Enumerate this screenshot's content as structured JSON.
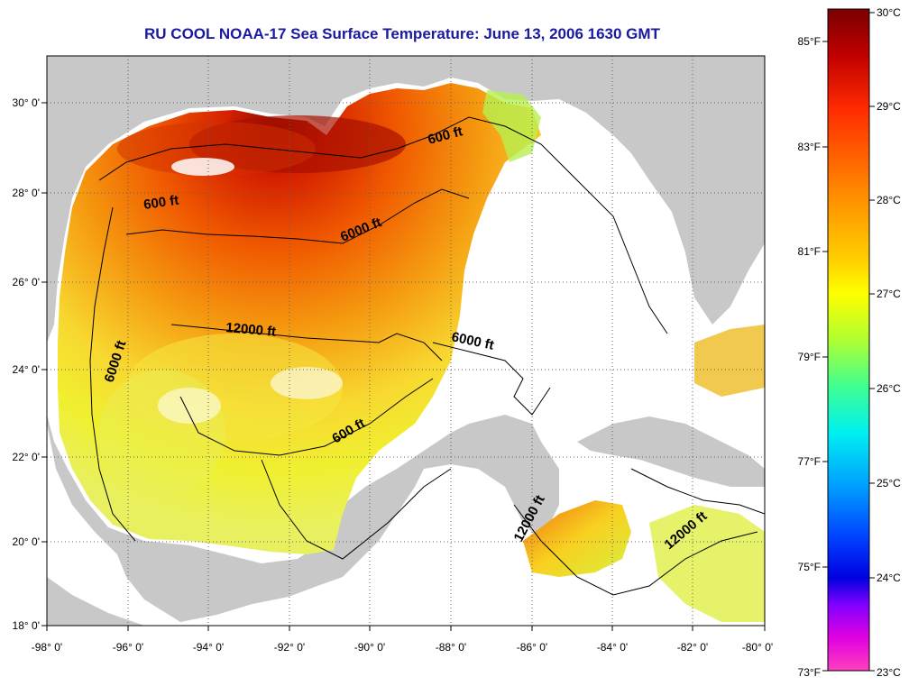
{
  "title": "RU COOL  NOAA-17  Sea Surface Temperature:  June 13, 2006 1630 GMT",
  "colors": {
    "land": "#c8c8c8",
    "nodata": "#ffffff",
    "frame": "#000000",
    "title": "#1a1aa0"
  },
  "lon_ticks": [
    "-98° 0'",
    "-96° 0'",
    "-94° 0'",
    "-92° 0'",
    "-90° 0'",
    "-88° 0'",
    "-86° 0'",
    "-84° 0'",
    "-82° 0'",
    "-80° 0'"
  ],
  "lat_ticks": [
    "30° 0'",
    "28° 0'",
    "26° 0'",
    "24° 0'",
    "22° 0'",
    "20° 0'",
    "18° 0'"
  ],
  "contour_labels": [
    "600 ft",
    "600 ft",
    "6000 ft",
    "12000 ft",
    "6000 ft",
    "6000 ft",
    "600 ft",
    "12000 ft",
    "12000 ft"
  ],
  "colorbar": {
    "celsius": [
      "30°C",
      "29°C",
      "28°C",
      "27°C",
      "26°C",
      "25°C",
      "24°C",
      "23°C"
    ],
    "fahrenheit": [
      "85°F",
      "83°F",
      "81°F",
      "79°F",
      "77°F",
      "75°F",
      "73°F"
    ],
    "range_c": [
      23,
      30
    ]
  }
}
